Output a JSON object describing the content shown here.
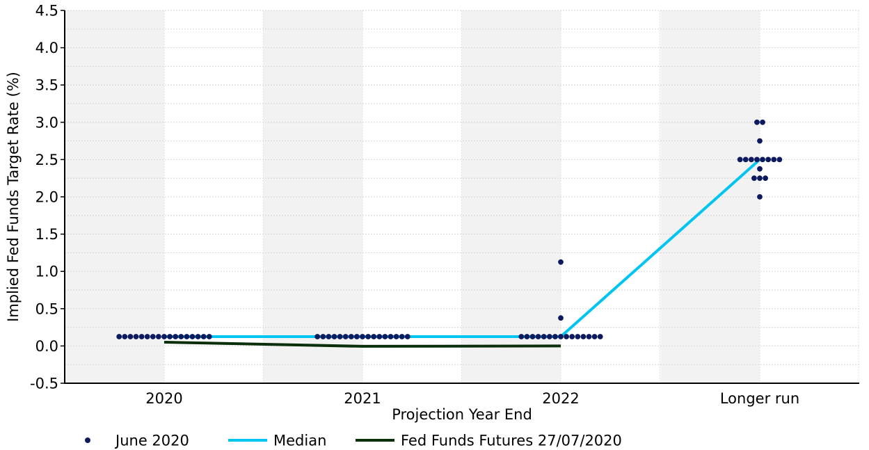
{
  "chart_data": {
    "type": "line",
    "title": "",
    "xlabel": "Projection Year End",
    "ylabel": "Implied Fed Funds Target Rate (%)",
    "categories": [
      "2020",
      "2021",
      "2022",
      "Longer run"
    ],
    "ylim": [
      -0.5,
      4.5
    ],
    "yticks": [
      "-0.5",
      "0.0",
      "0.5",
      "1.0",
      "1.5",
      "2.0",
      "2.5",
      "3.0",
      "3.5",
      "4.0",
      "4.5"
    ],
    "grid": true,
    "legend_position": "bottom",
    "series": [
      {
        "name": "June 2020",
        "type": "scatter",
        "color": "#0d1b5e",
        "points": {
          "2020": [
            [
              0.125,
              17
            ]
          ],
          "2021": [
            [
              0.125,
              17
            ]
          ],
          "2022": [
            [
              0.125,
              15
            ],
            [
              0.375,
              1
            ],
            [
              1.125,
              1
            ]
          ],
          "Longer run": [
            [
              2.0,
              1
            ],
            [
              2.25,
              3
            ],
            [
              2.375,
              1
            ],
            [
              2.5,
              8
            ],
            [
              2.75,
              1
            ],
            [
              3.0,
              2
            ]
          ]
        }
      },
      {
        "name": "Median",
        "type": "line",
        "color": "#00c5f0",
        "values": [
          0.125,
          0.125,
          0.125,
          2.5
        ]
      },
      {
        "name": "Fed Funds Futures 27/07/2020",
        "type": "line",
        "color": "#0b2e0b",
        "values": [
          0.05,
          -0.005,
          0.0,
          null
        ]
      }
    ]
  }
}
